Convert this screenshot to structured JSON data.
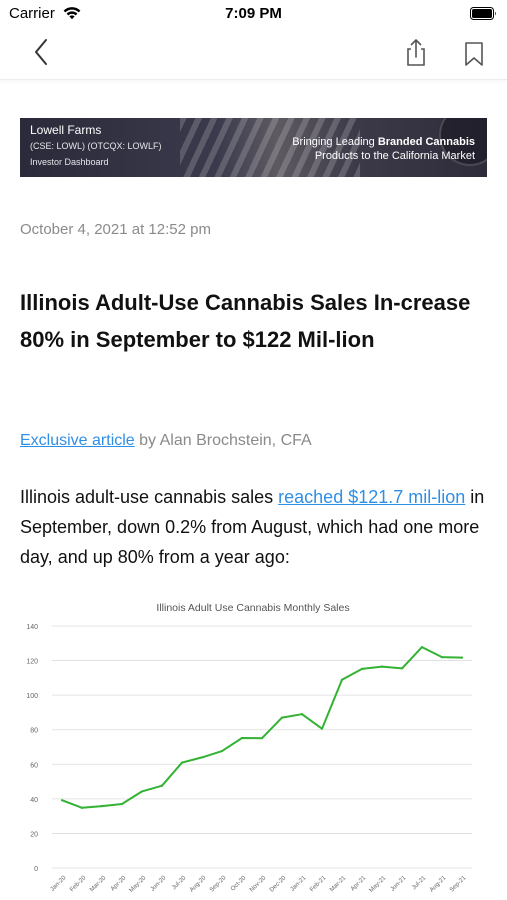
{
  "status_bar": {
    "carrier": "Carrier",
    "time": "7:09 PM"
  },
  "nav": {
    "back_icon": "chevron-left-icon",
    "share_icon": "share-icon",
    "bookmark_icon": "bookmark-icon"
  },
  "banner": {
    "company": "Lowell Farms",
    "tickers": "(CSE: LOWL) (OTCQX: LOWLF)",
    "dashboard": "Investor Dashboard",
    "tagline_pre": "Bringing Leading ",
    "tagline_bold": "Branded Cannabis",
    "tagline_post": "Products to the California Market"
  },
  "article": {
    "date": "October 4, 2021 at 12:52 pm",
    "title": "Illinois Adult-Use Cannabis Sales In-crease 80% in September to $122 Mil-lion",
    "byline_link": "Exclusive article",
    "byline_text": " by Alan Brochstein, CFA",
    "lede_start": "Illinois adult-use cannabis sales ",
    "lede_link": "reached $121.7 mil-lion",
    "lede_end": " in September, down 0.2% from August, which had one more day, and up 80% from a year ago:"
  },
  "colors": {
    "link": "#2f8fe6",
    "line": "#33b233",
    "grid": "#dcdcdc"
  },
  "chart_data": {
    "type": "line",
    "title": "Illinois Adult Use Cannabis Monthly Sales",
    "xlabel": "",
    "ylabel": "",
    "categories": [
      "Jan-20",
      "Feb-20",
      "Mar-20",
      "Apr-20",
      "May-20",
      "Jun-20",
      "Jul-20",
      "Aug-20",
      "Sep-20",
      "Oct-20",
      "Nov-20",
      "Dec-20",
      "Jan-21",
      "Feb-21",
      "Mar-21",
      "Apr-21",
      "May-21",
      "Jun-21",
      "Jul-21",
      "Aug-21",
      "Sep-21"
    ],
    "values": [
      39.2,
      34.8,
      35.8,
      37,
      44.3,
      47.6,
      61,
      64,
      67.6,
      75.2,
      75.1,
      87,
      89,
      80.6,
      108.9,
      115.2,
      116.5,
      115.5,
      127.8,
      122,
      121.7
    ],
    "y_ticks": [
      "0",
      "20",
      "40",
      "60",
      "80",
      "100",
      "120",
      "140"
    ],
    "ylim": [
      0,
      140
    ],
    "grid": true,
    "legend": "none"
  }
}
